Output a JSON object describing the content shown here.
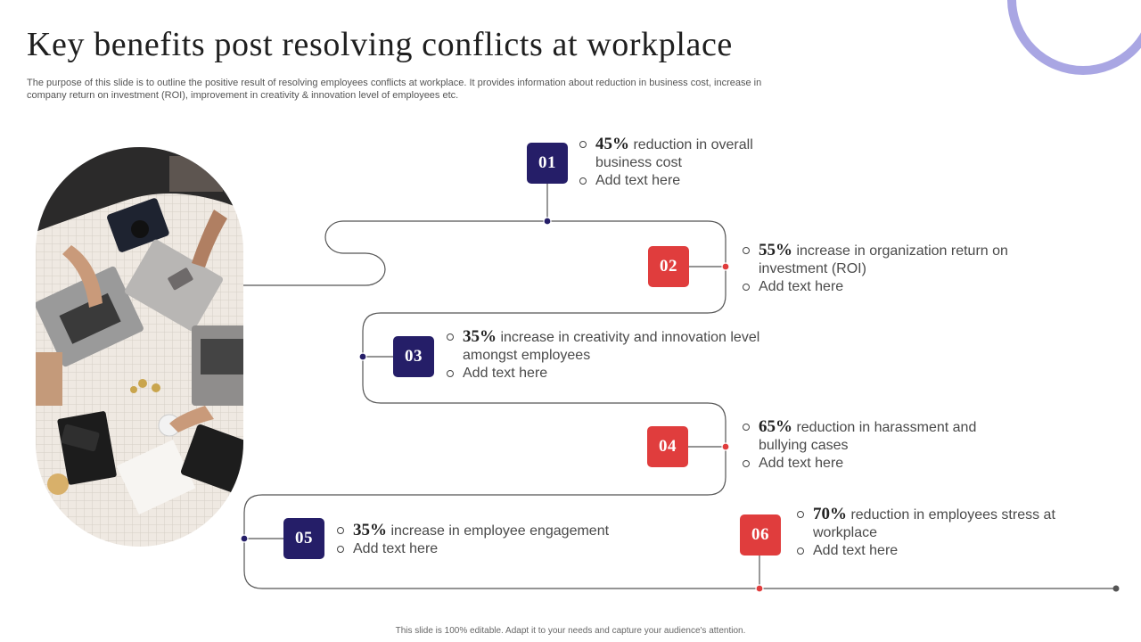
{
  "slide": {
    "title": "Key benefits post resolving conflicts at workplace",
    "subtitle": "The purpose of this slide is to outline the positive result of resolving employees conflicts at workplace. It provides information about reduction in business cost, increase in company return on investment (ROI), improvement in creativity & innovation level of employees etc.",
    "footer": "This slide is 100% editable. Adapt it to your needs and capture your audience's attention."
  },
  "colors": {
    "navy": "#251e68",
    "red": "#e03d3d",
    "accent_ring": "#a9a6e3",
    "line": "#555555"
  },
  "benefits": [
    {
      "number": "01",
      "percent": "45%",
      "text": " reduction in overall business cost",
      "extra": "Add text here"
    },
    {
      "number": "02",
      "percent": "55%",
      "text": " increase in organization return on investment (ROI)",
      "extra": "Add text here"
    },
    {
      "number": "03",
      "percent": "35%",
      "text": " increase in creativity and innovation level amongst employees",
      "extra": "Add text here"
    },
    {
      "number": "04",
      "percent": "65%",
      "text": " reduction in harassment and bullying cases",
      "extra": "Add text here"
    },
    {
      "number": "05",
      "percent": "35%",
      "text": " increase in employee engagement",
      "extra": "Add text here"
    },
    {
      "number": "06",
      "percent": "70%",
      "text": " reduction in employees stress at workplace",
      "extra": "Add text here"
    }
  ]
}
